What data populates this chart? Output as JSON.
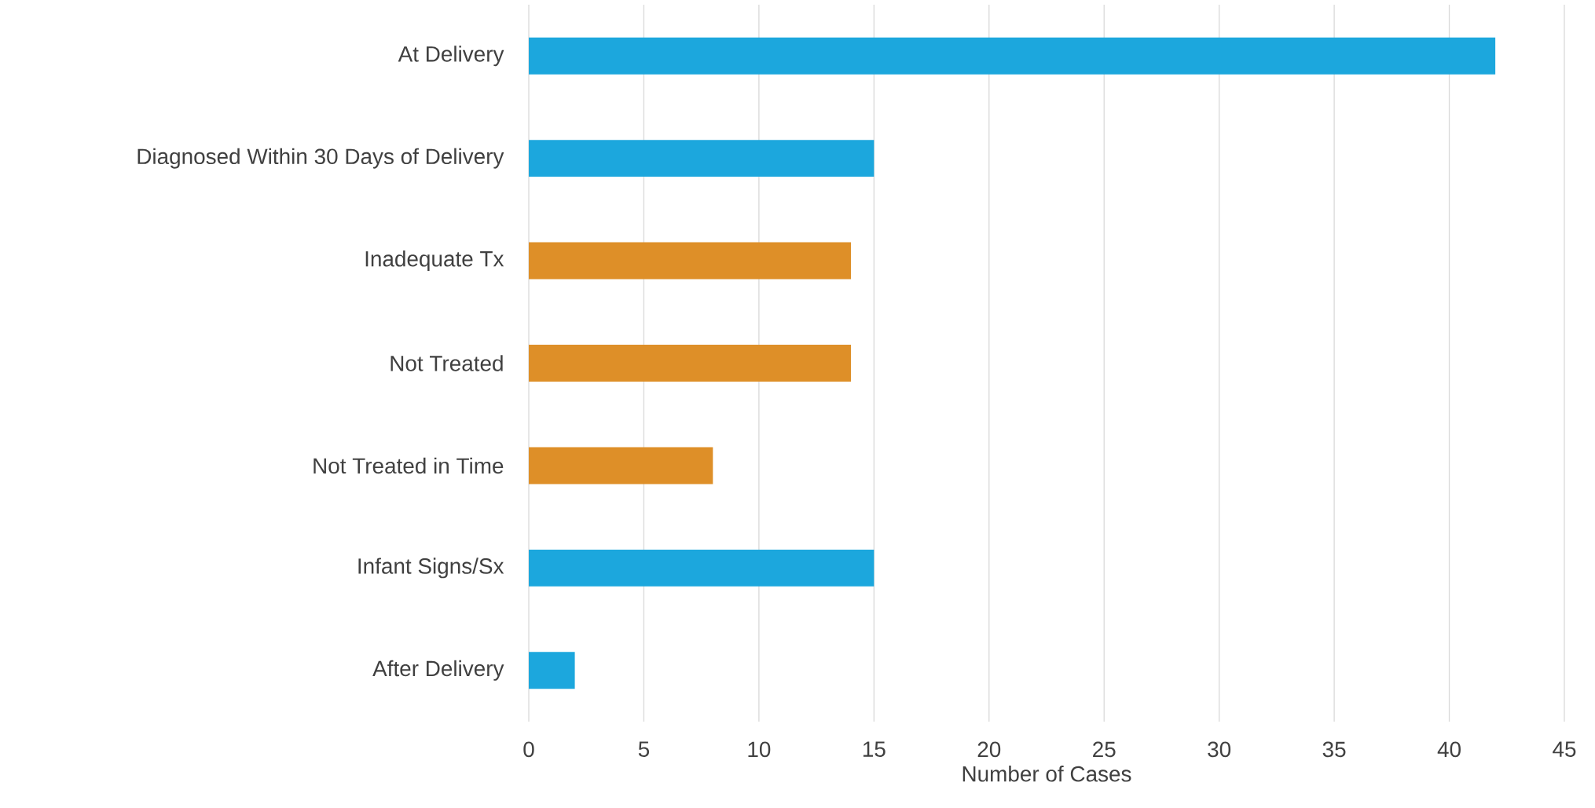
{
  "chart_data": {
    "type": "bar",
    "orientation": "horizontal",
    "xlabel": "Number of Cases",
    "categories": [
      "At Delivery",
      "Diagnosed Within 30 Days of Delivery",
      "Inadequate Tx",
      "Not Treated",
      "Not Treated in Time",
      "Infant Signs/Sx",
      "After Delivery"
    ],
    "values": [
      42,
      15,
      14,
      14,
      8,
      15,
      2
    ],
    "colors": [
      "#1ca7dd",
      "#1ca7dd",
      "#de8f28",
      "#de8f28",
      "#de8f28",
      "#1ca7dd",
      "#1ca7dd"
    ],
    "xlim": [
      0,
      45
    ],
    "xticks": [
      0,
      5,
      10,
      15,
      20,
      25,
      30,
      35,
      40,
      45
    ],
    "grid": "x"
  }
}
